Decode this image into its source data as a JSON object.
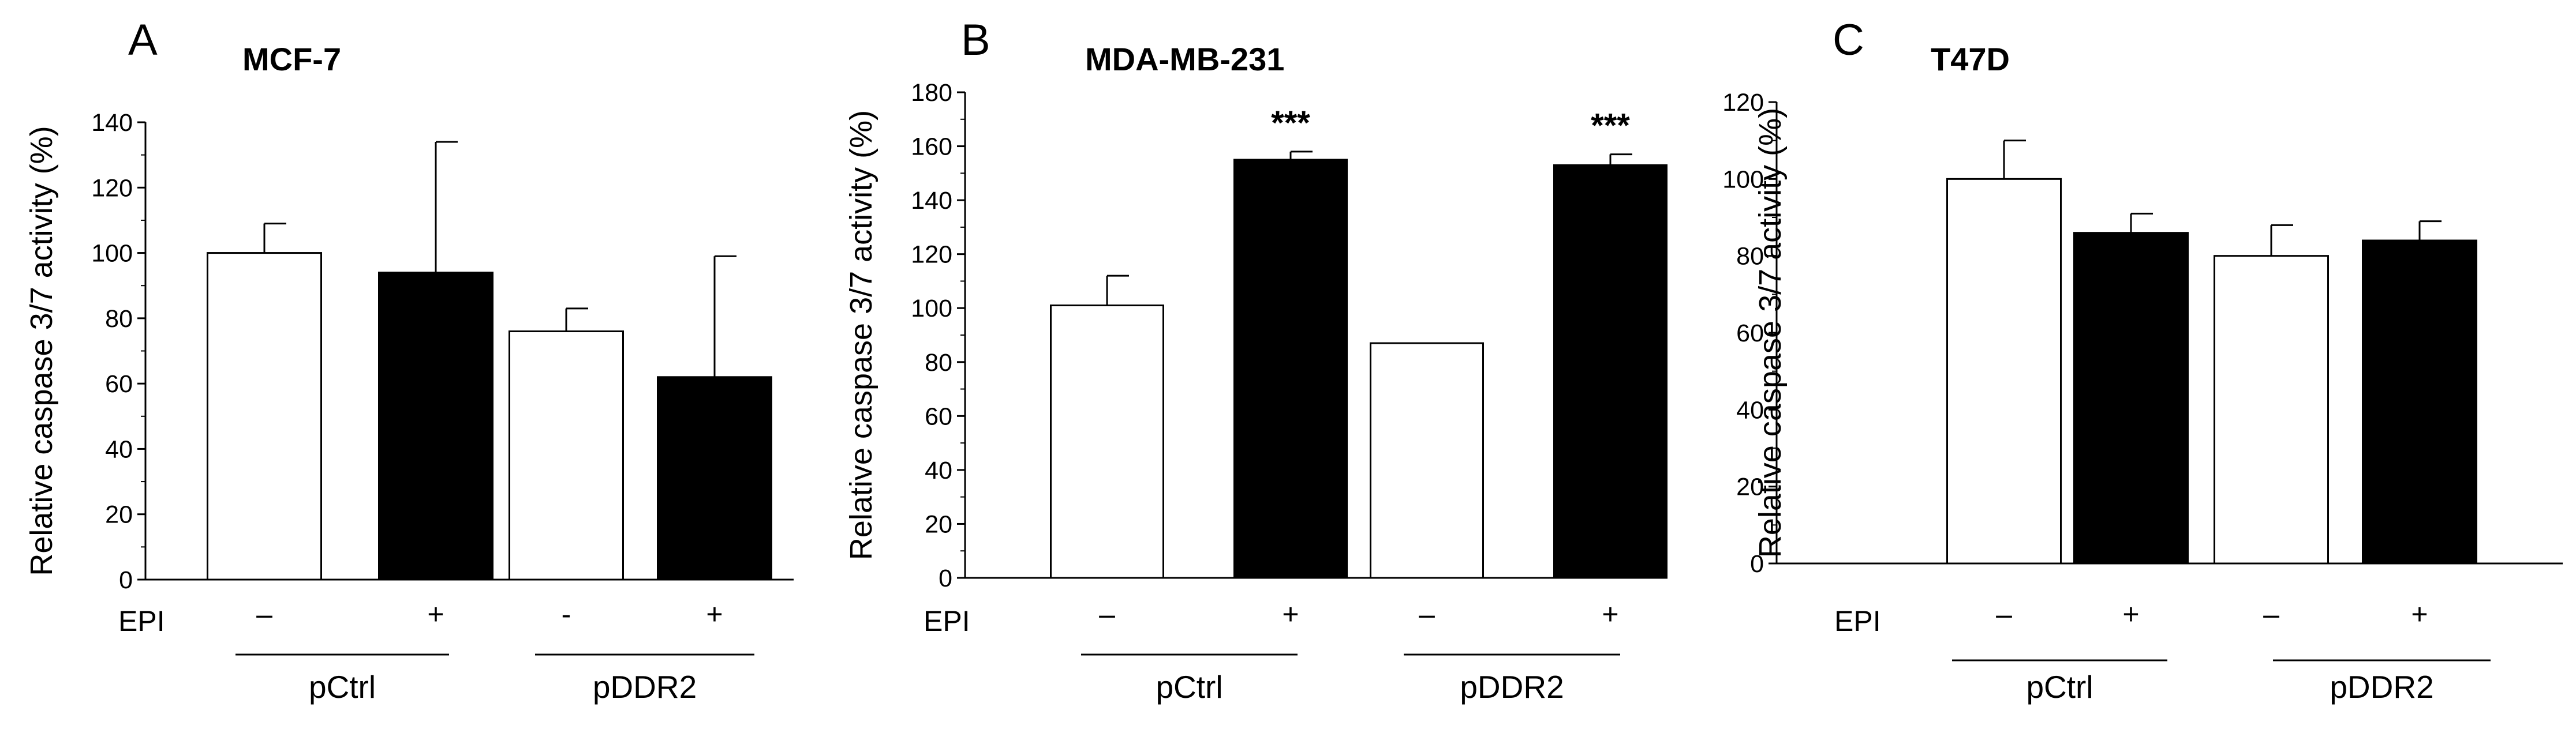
{
  "row_label": "EPI",
  "colors": {
    "untreated_fill": "#ffffff",
    "treated_fill": "#000000",
    "stroke": "#000000"
  },
  "chart_data": [
    {
      "type": "bar",
      "panel": "A",
      "title": "MCF-7",
      "ylabel": "Relative caspase 3/7 activity (%)",
      "xlabel": "",
      "ylim": [
        0,
        140
      ],
      "yticks": [
        "0",
        "20",
        "40",
        "60",
        "80",
        "100",
        "120",
        "140"
      ],
      "grid": false,
      "categories": [
        "–",
        "+",
        "-",
        "+"
      ],
      "groups": [
        "pCtrl",
        "pDDR2"
      ],
      "values": [
        100,
        94,
        76,
        62
      ],
      "errors": [
        9,
        40,
        7,
        37
      ],
      "fill": [
        "white",
        "black",
        "white",
        "black"
      ],
      "annotations": [
        "",
        "",
        "",
        ""
      ]
    },
    {
      "type": "bar",
      "panel": "B",
      "title": "MDA-MB-231",
      "ylabel": "Relative caspase 3/7 activity (%)",
      "xlabel": "",
      "ylim": [
        0,
        180
      ],
      "yticks": [
        "0",
        "20",
        "40",
        "60",
        "80",
        "100",
        "120",
        "140",
        "160",
        "180"
      ],
      "grid": false,
      "categories": [
        "–",
        "+",
        "–",
        "+"
      ],
      "groups": [
        "pCtrl",
        "pDDR2"
      ],
      "values": [
        101,
        155,
        87,
        153
      ],
      "errors": [
        11,
        3,
        0,
        4
      ],
      "fill": [
        "white",
        "black",
        "white",
        "black"
      ],
      "annotations": [
        "",
        "***",
        "",
        "***"
      ]
    },
    {
      "type": "bar",
      "panel": "C",
      "title": "T47D",
      "ylabel": "Relative caspase 3/7 activity (%)",
      "xlabel": "",
      "ylim": [
        0,
        120
      ],
      "yticks": [
        "0",
        "20",
        "40",
        "60",
        "80",
        "100",
        "120"
      ],
      "grid": false,
      "categories": [
        "–",
        "+",
        "–",
        "+"
      ],
      "groups": [
        "pCtrl",
        "pDDR2"
      ],
      "values": [
        100,
        86,
        80,
        84
      ],
      "errors": [
        10,
        5,
        8,
        5
      ],
      "fill": [
        "white",
        "black",
        "white",
        "black"
      ],
      "annotations": [
        "",
        "",
        "",
        ""
      ]
    }
  ]
}
